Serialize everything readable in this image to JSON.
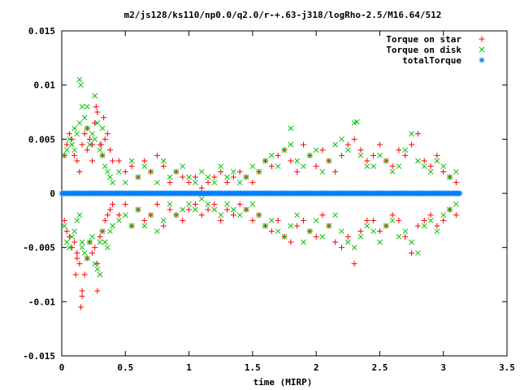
{
  "chart_data": {
    "type": "scatter",
    "title": "m2/js128/ks110/np0.0/q2.0/r-+.63-j318/logRho-2.5/M16.64/512",
    "xlabel": "time (MIRP)",
    "ylabel": "",
    "xlim": [
      0,
      3.5
    ],
    "ylim": [
      -0.015,
      0.015
    ],
    "x_ticks": [
      {
        "value": 0,
        "label": "0"
      },
      {
        "value": 0.5,
        "label": "0.5"
      },
      {
        "value": 1,
        "label": "1"
      },
      {
        "value": 1.5,
        "label": "1.5"
      },
      {
        "value": 2,
        "label": "2"
      },
      {
        "value": 2.5,
        "label": "2.5"
      },
      {
        "value": 3,
        "label": "3"
      },
      {
        "value": 3.5,
        "label": "3.5"
      }
    ],
    "y_ticks": [
      {
        "value": 0.015,
        "label": "0.015"
      },
      {
        "value": 0.01,
        "label": "0.01"
      },
      {
        "value": 0.005,
        "label": "0.005"
      },
      {
        "value": 0,
        "label": "0"
      },
      {
        "value": -0.005,
        "label": "-0.005"
      },
      {
        "value": -0.01,
        "label": "-0.01"
      },
      {
        "value": -0.015,
        "label": "-0.015"
      }
    ],
    "grid": false,
    "legend_position": "top-right",
    "series": [
      {
        "name": "Torque on star",
        "marker": "+",
        "color": "#ff0000",
        "x": [
          0.02,
          0.04,
          0.06,
          0.08,
          0.1,
          0.12,
          0.14,
          0.16,
          0.18,
          0.2,
          0.22,
          0.24,
          0.26,
          0.28,
          0.3,
          0.32,
          0.34,
          0.36,
          0.38,
          0.4,
          0.02,
          0.04,
          0.06,
          0.08,
          0.1,
          0.12,
          0.14,
          0.16,
          0.18,
          0.2,
          0.22,
          0.24,
          0.26,
          0.28,
          0.3,
          0.32,
          0.34,
          0.36,
          0.38,
          0.4,
          0.45,
          0.5,
          0.55,
          0.6,
          0.65,
          0.7,
          0.75,
          0.8,
          0.85,
          0.9,
          0.95,
          1.0,
          1.05,
          1.1,
          1.15,
          1.2,
          1.25,
          1.3,
          1.35,
          1.4,
          0.45,
          0.5,
          0.55,
          0.6,
          0.65,
          0.7,
          0.75,
          0.8,
          0.85,
          0.9,
          0.95,
          1.0,
          1.05,
          1.1,
          1.15,
          1.2,
          1.25,
          1.3,
          1.35,
          1.4,
          1.45,
          1.5,
          1.55,
          1.6,
          1.65,
          1.7,
          1.75,
          1.8,
          1.85,
          1.9,
          1.95,
          2.0,
          2.05,
          2.1,
          2.15,
          2.2,
          2.25,
          2.3,
          2.35,
          2.4,
          1.45,
          1.5,
          1.55,
          1.6,
          1.65,
          1.7,
          1.75,
          1.8,
          1.85,
          1.9,
          1.95,
          2.0,
          2.05,
          2.1,
          2.15,
          2.2,
          2.25,
          2.3,
          2.35,
          2.4,
          2.45,
          2.5,
          2.55,
          2.6,
          2.65,
          2.7,
          2.75,
          2.8,
          2.85,
          2.9,
          2.95,
          3.0,
          3.05,
          3.1,
          2.45,
          2.5,
          2.55,
          2.6,
          2.65,
          2.7,
          2.75,
          2.8,
          2.85,
          2.9,
          2.95,
          3.0,
          3.05,
          3.1,
          0.15,
          0.16,
          0.28,
          0.27,
          0.24,
          0.11,
          0.33,
          0.31,
          0.12,
          0.2
        ],
        "y": [
          0.0035,
          0.0045,
          0.0055,
          0.005,
          0.0035,
          0.003,
          0.002,
          0.0045,
          0.0055,
          0.006,
          0.005,
          0.0045,
          0.0065,
          0.0075,
          0.0045,
          0.0035,
          0.005,
          0.0055,
          0.004,
          0.003,
          -0.0025,
          -0.0035,
          -0.004,
          -0.005,
          -0.0045,
          -0.0055,
          -0.0065,
          -0.0095,
          -0.0075,
          -0.006,
          -0.0045,
          -0.0055,
          -0.005,
          -0.0065,
          -0.004,
          -0.0035,
          -0.0025,
          -0.002,
          -0.0015,
          -0.001,
          0.003,
          0.002,
          0.0025,
          0.0015,
          0.003,
          0.002,
          0.0035,
          0.0025,
          0.001,
          0.002,
          0.0015,
          0.001,
          0.0015,
          0.0005,
          0.001,
          0.0015,
          0.002,
          0.001,
          0.0015,
          0.002,
          -0.002,
          -0.001,
          -0.003,
          -0.0015,
          -0.0025,
          -0.002,
          -0.001,
          -0.003,
          -0.0015,
          -0.002,
          -0.0025,
          -0.0015,
          -0.001,
          -0.002,
          -0.0015,
          -0.001,
          -0.0025,
          -0.0015,
          -0.002,
          -0.001,
          0.0015,
          0.001,
          0.002,
          0.003,
          0.0025,
          0.0035,
          0.004,
          0.003,
          0.002,
          0.0045,
          0.0035,
          0.0025,
          0.004,
          0.003,
          0.002,
          0.0035,
          0.0045,
          0.005,
          0.004,
          0.003,
          -0.0015,
          -0.0025,
          -0.002,
          -0.003,
          -0.0035,
          -0.0025,
          -0.004,
          -0.0045,
          -0.003,
          -0.0025,
          -0.0035,
          -0.004,
          -0.002,
          -0.003,
          -0.0045,
          -0.005,
          -0.004,
          -0.0065,
          -0.0035,
          -0.0025,
          0.0035,
          0.0045,
          0.003,
          0.0025,
          0.004,
          0.0035,
          0.0045,
          0.0055,
          0.003,
          0.0025,
          0.0035,
          0.002,
          0.0015,
          0.001,
          -0.0025,
          -0.0035,
          -0.003,
          -0.002,
          -0.0025,
          -0.004,
          -0.0055,
          -0.003,
          -0.0025,
          -0.002,
          -0.003,
          -0.0025,
          -0.0015,
          -0.002,
          -0.0105,
          -0.009,
          -0.009,
          0.008,
          0.003,
          -0.0075,
          0.007,
          0.0045,
          -0.006,
          0.004
        ]
      },
      {
        "name": "Torque on disk",
        "marker": "x",
        "color": "#00c000",
        "x": [
          0.02,
          0.04,
          0.06,
          0.08,
          0.1,
          0.12,
          0.14,
          0.16,
          0.18,
          0.2,
          0.22,
          0.24,
          0.26,
          0.28,
          0.3,
          0.32,
          0.34,
          0.36,
          0.38,
          0.4,
          0.02,
          0.04,
          0.06,
          0.08,
          0.1,
          0.12,
          0.14,
          0.16,
          0.18,
          0.2,
          0.22,
          0.24,
          0.26,
          0.28,
          0.3,
          0.32,
          0.34,
          0.36,
          0.38,
          0.4,
          0.45,
          0.5,
          0.55,
          0.6,
          0.65,
          0.7,
          0.75,
          0.8,
          0.85,
          0.9,
          0.95,
          1.0,
          1.05,
          1.1,
          1.15,
          1.2,
          1.25,
          1.3,
          1.35,
          1.4,
          0.45,
          0.5,
          0.55,
          0.6,
          0.65,
          0.7,
          0.75,
          0.8,
          0.85,
          0.9,
          0.95,
          1.0,
          1.05,
          1.1,
          1.15,
          1.2,
          1.25,
          1.3,
          1.35,
          1.4,
          1.45,
          1.5,
          1.55,
          1.6,
          1.65,
          1.7,
          1.75,
          1.8,
          1.85,
          1.9,
          1.95,
          2.0,
          2.05,
          2.1,
          2.15,
          2.2,
          2.25,
          2.3,
          2.35,
          2.4,
          1.45,
          1.5,
          1.55,
          1.6,
          1.65,
          1.7,
          1.75,
          1.8,
          1.85,
          1.9,
          1.95,
          2.0,
          2.05,
          2.1,
          2.15,
          2.2,
          2.25,
          2.3,
          2.35,
          2.4,
          2.45,
          2.5,
          2.55,
          2.6,
          2.65,
          2.7,
          2.75,
          2.8,
          2.85,
          2.9,
          2.95,
          3.0,
          3.05,
          3.1,
          2.45,
          2.5,
          2.55,
          2.6,
          2.65,
          2.7,
          2.75,
          2.8,
          2.85,
          2.9,
          2.95,
          3.0,
          3.05,
          3.1,
          0.14,
          0.15,
          0.26,
          0.2,
          0.32,
          0.3,
          0.16,
          0.1,
          1.8,
          2.32
        ],
        "y": [
          -0.003,
          -0.0045,
          -0.005,
          -0.004,
          -0.0035,
          -0.0025,
          -0.002,
          -0.0045,
          -0.0055,
          -0.006,
          -0.0045,
          -0.004,
          -0.0065,
          -0.007,
          -0.0045,
          -0.0035,
          -0.0045,
          -0.005,
          -0.0035,
          -0.003,
          0.0035,
          0.004,
          0.005,
          0.0045,
          0.004,
          0.0055,
          0.0065,
          0.008,
          0.007,
          0.006,
          0.0045,
          0.0055,
          0.005,
          0.0065,
          0.004,
          0.0035,
          0.0025,
          0.002,
          0.0015,
          0.001,
          -0.0025,
          -0.002,
          -0.003,
          -0.0015,
          -0.003,
          -0.002,
          -0.0035,
          -0.0025,
          -0.001,
          -0.002,
          -0.0015,
          -0.001,
          -0.0015,
          -0.0005,
          -0.001,
          -0.0015,
          -0.002,
          -0.001,
          -0.0015,
          -0.002,
          0.002,
          0.001,
          0.003,
          0.0015,
          0.0025,
          0.002,
          0.001,
          0.003,
          0.0015,
          0.002,
          0.0025,
          0.0015,
          0.001,
          0.002,
          0.0015,
          0.001,
          0.0025,
          0.0015,
          0.002,
          0.001,
          -0.0015,
          -0.001,
          -0.002,
          -0.003,
          -0.0025,
          -0.0035,
          -0.004,
          -0.003,
          -0.002,
          -0.0045,
          -0.0035,
          -0.0025,
          -0.004,
          -0.003,
          -0.002,
          -0.0035,
          -0.0045,
          -0.005,
          -0.004,
          -0.003,
          0.0015,
          0.0025,
          0.002,
          0.003,
          0.0035,
          0.0025,
          0.004,
          0.0045,
          0.003,
          0.0025,
          0.0035,
          0.004,
          0.002,
          0.003,
          0.0045,
          0.005,
          0.004,
          0.0065,
          0.0035,
          0.0025,
          -0.0035,
          -0.0045,
          -0.003,
          -0.0025,
          -0.004,
          -0.0035,
          -0.0045,
          -0.0055,
          -0.003,
          -0.0025,
          -0.0035,
          -0.002,
          -0.0015,
          -0.001,
          0.0025,
          0.0035,
          0.003,
          0.002,
          0.0025,
          0.004,
          0.0055,
          0.003,
          0.0025,
          0.002,
          0.003,
          0.0025,
          0.0015,
          0.002,
          0.0105,
          0.01,
          0.009,
          0.008,
          0.006,
          -0.0075,
          -0.005,
          0.006,
          0.006,
          0.0066
        ]
      },
      {
        "name": "totalTorque",
        "marker": "*",
        "color": "#0080ff",
        "x_range": [
          0.0,
          3.13
        ],
        "y": 0.0
      }
    ]
  }
}
